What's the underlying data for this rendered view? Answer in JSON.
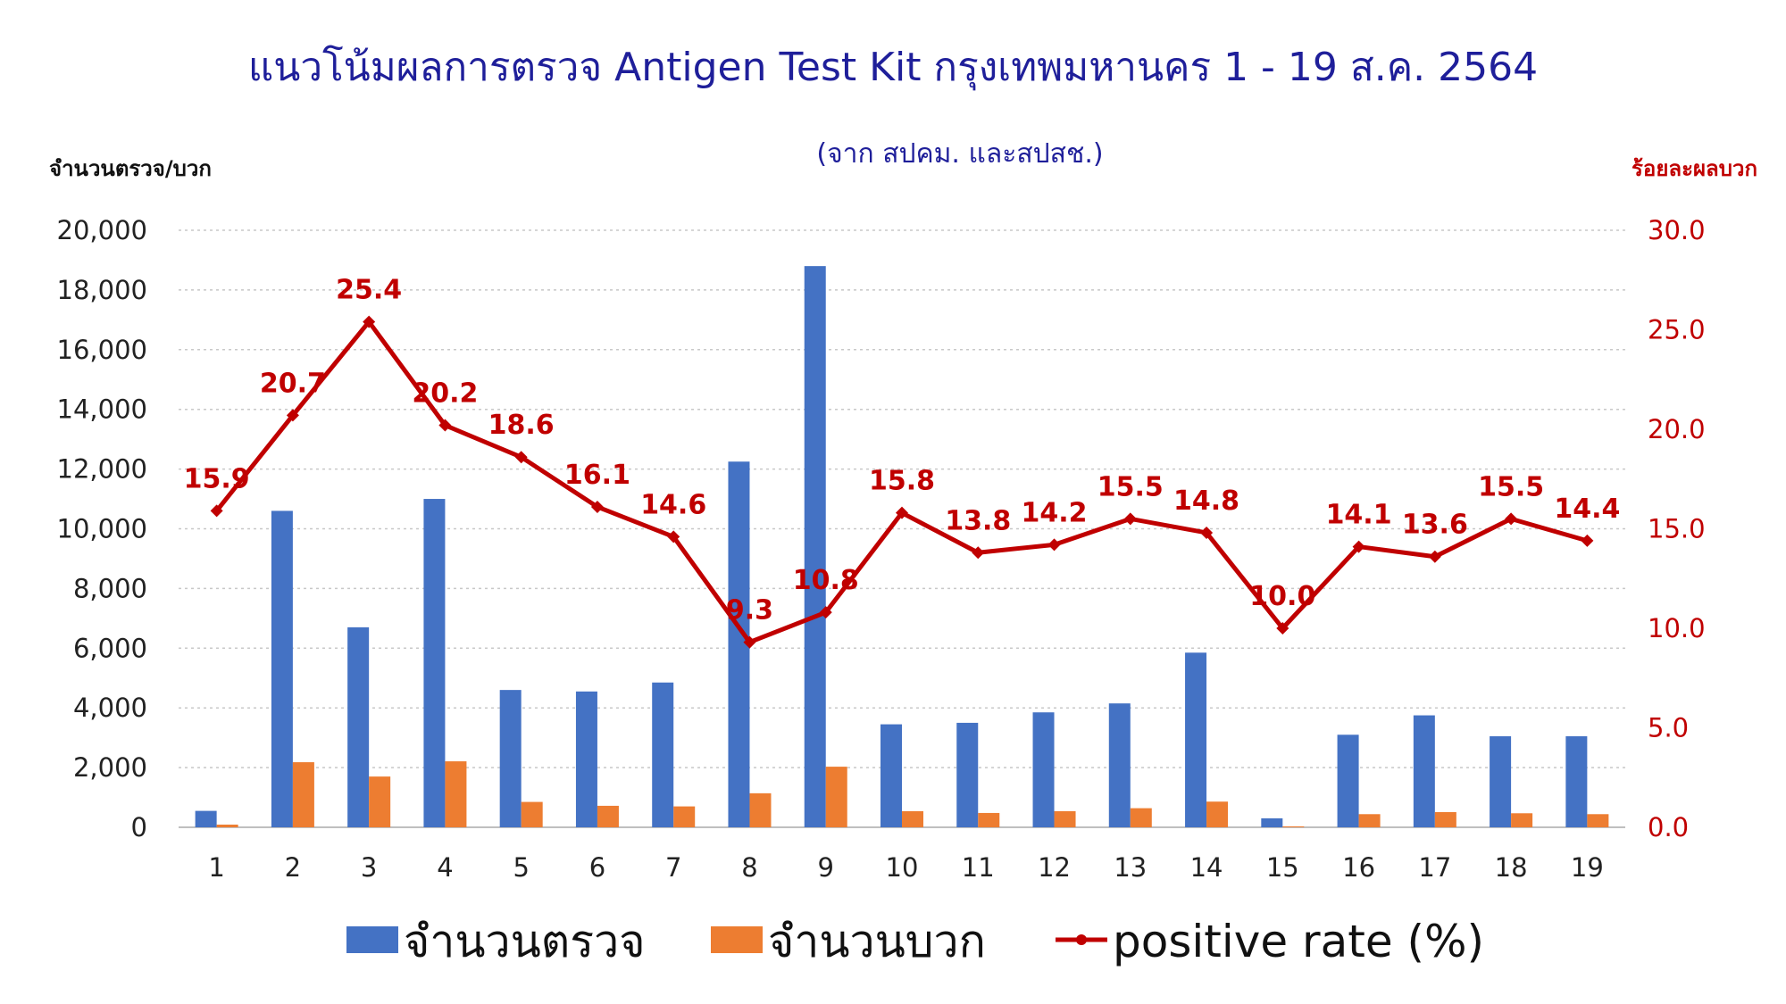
{
  "chart_data": {
    "type": "bar",
    "title": "แนวโน้มผลการตรวจ Antigen Test Kit กรุงเทพมหานคร 1 - 19 ส.ค. 2564",
    "subtitle": "(จาก สปคม. และสปสช.)",
    "ylabel": "จำนวนตรวจ/บวก",
    "y2label": "ร้อยละผลบวก",
    "xlabel": "",
    "categories": [
      "1",
      "2",
      "3",
      "4",
      "5",
      "6",
      "7",
      "8",
      "9",
      "10",
      "11",
      "12",
      "13",
      "14",
      "15",
      "16",
      "17",
      "18",
      "19"
    ],
    "ylim": [
      0,
      20000
    ],
    "yticks": [
      0,
      2000,
      4000,
      6000,
      8000,
      10000,
      12000,
      14000,
      16000,
      18000,
      20000
    ],
    "ytick_labels": [
      "0",
      "2,000",
      "4,000",
      "6,000",
      "8,000",
      "10,000",
      "12,000",
      "14,000",
      "16,000",
      "18,000",
      "20,000"
    ],
    "y2lim": [
      0,
      30
    ],
    "y2ticks": [
      0,
      5,
      10,
      15,
      20,
      25,
      30
    ],
    "y2tick_labels": [
      "0.0",
      "5.0",
      "10.0",
      "15.0",
      "20.0",
      "25.0",
      "30.0"
    ],
    "grid": true,
    "legend_position": "bottom",
    "series": [
      {
        "name": "จำนวนตรวจ",
        "type": "bar",
        "axis": "left",
        "color": "#4472c4",
        "values": [
          550,
          10600,
          6700,
          11000,
          4600,
          4550,
          4850,
          12250,
          18800,
          3450,
          3500,
          3850,
          4150,
          5850,
          300,
          3100,
          3750,
          3050,
          3050
        ]
      },
      {
        "name": "จำนวนบวก",
        "type": "bar",
        "axis": "left",
        "color": "#ed7d31",
        "values": [
          90,
          2180,
          1700,
          2210,
          850,
          720,
          700,
          1140,
          2030,
          540,
          480,
          540,
          640,
          860,
          30,
          440,
          510,
          470,
          440
        ]
      },
      {
        "name": "positive rate (%)",
        "type": "line",
        "axis": "right",
        "color": "#c00000",
        "values": [
          15.9,
          20.7,
          25.4,
          20.2,
          18.6,
          16.1,
          14.6,
          9.3,
          10.8,
          15.8,
          13.8,
          14.2,
          15.5,
          14.8,
          10.0,
          14.1,
          13.6,
          15.5,
          14.4
        ],
        "labels": [
          "15.9",
          "20.7",
          "25.4",
          "20.2",
          "18.6",
          "16.1",
          "14.6",
          "9.3",
          "10.8",
          "15.8",
          "13.8",
          "14.2",
          "15.5",
          "14.8",
          "10.0",
          "14.1",
          "13.6",
          "15.5",
          "14.4"
        ]
      }
    ]
  }
}
